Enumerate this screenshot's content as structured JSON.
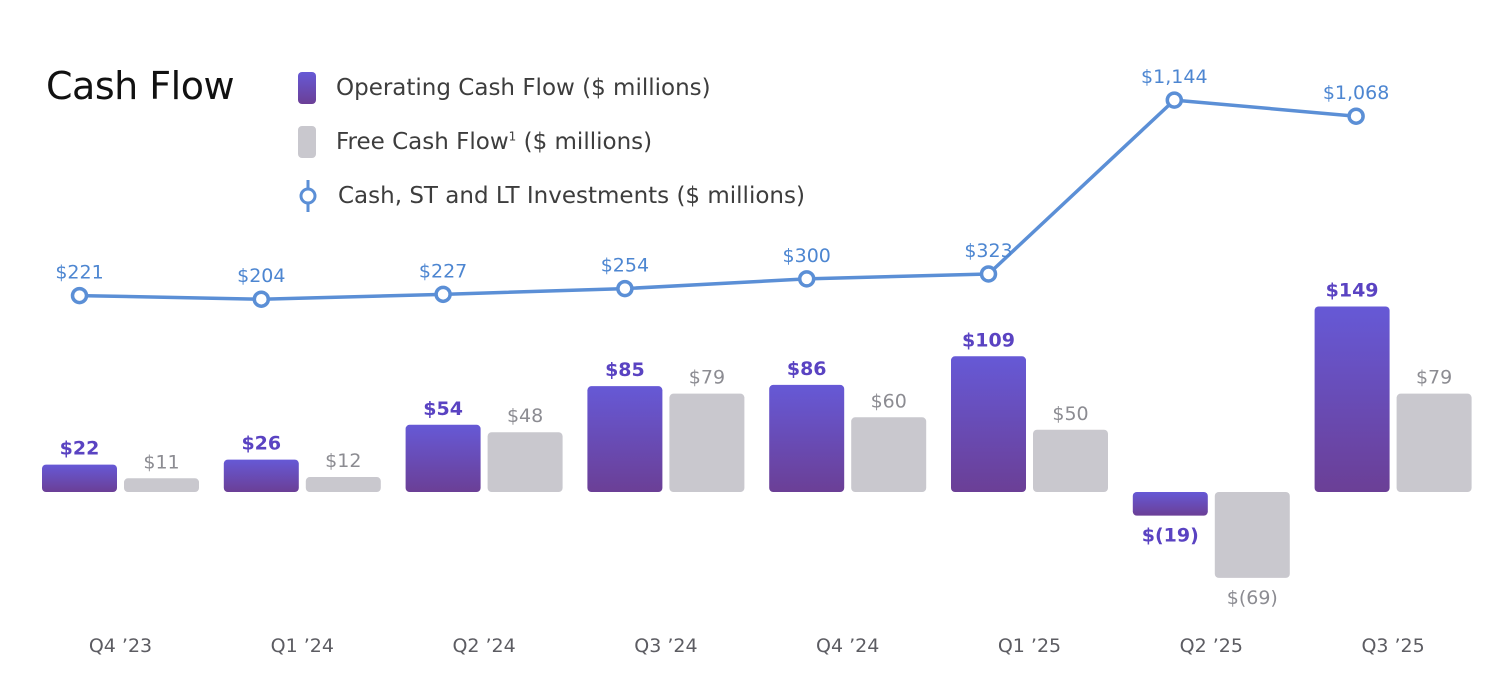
{
  "chart_data": {
    "type": "bar",
    "title": "Cash Flow",
    "categories": [
      "Q4 ’23",
      "Q1 ’24",
      "Q2 ’24",
      "Q3 ’24",
      "Q4 ’24",
      "Q1 ’25",
      "Q2 ’25",
      "Q3 ’25"
    ],
    "series": [
      {
        "name": "Operating Cash Flow ($ millions)",
        "kind": "bar",
        "color": "#5b44c9",
        "values": [
          22,
          26,
          54,
          85,
          86,
          109,
          -19,
          149
        ],
        "labels": [
          "$22",
          "$26",
          "$54",
          "$85",
          "$86",
          "$109",
          "$(19)",
          "$149"
        ]
      },
      {
        "name": "Free Cash Flow",
        "name_superscript": "1",
        "name_suffix": "($ millions)",
        "kind": "bar",
        "color": "#c9c8ce",
        "values": [
          11,
          12,
          48,
          79,
          60,
          50,
          -69,
          79
        ],
        "labels": [
          "$11",
          "$12",
          "$48",
          "$79",
          "$60",
          "$50",
          "$(69)",
          "$79"
        ]
      },
      {
        "name": "Cash, ST and LT Investments ($ millions)",
        "kind": "line",
        "color": "#5b8fd6",
        "values": [
          221,
          204,
          227,
          254,
          300,
          323,
          1144,
          1068
        ],
        "labels": [
          "$221",
          "$204",
          "$227",
          "$254",
          "$300",
          "$323",
          "$1,144",
          "$1,068"
        ]
      }
    ],
    "legend_position": "top",
    "grid": false
  },
  "colors": {
    "op_bar_top": "#6659d6",
    "op_bar_bottom": "#6b3f96",
    "fcf_bar": "#c9c8ce",
    "line": "#5b8fd6",
    "op_label": "#5a43c2",
    "fcf_label": "#8c8c92",
    "line_label": "#4d86d1",
    "axis_label": "#5c5c62"
  },
  "legend": {
    "op_label": "Operating Cash Flow ($ millions)",
    "fcf_label_main": "Free Cash Flow",
    "fcf_sup": "1",
    "fcf_suffix": " ($ millions)",
    "line_label": "Cash, ST and LT Investments ($ millions)",
    "op_icon": "purple-bar-swatch",
    "fcf_icon": "gray-bar-swatch",
    "line_icon": "line-marker-swatch"
  }
}
